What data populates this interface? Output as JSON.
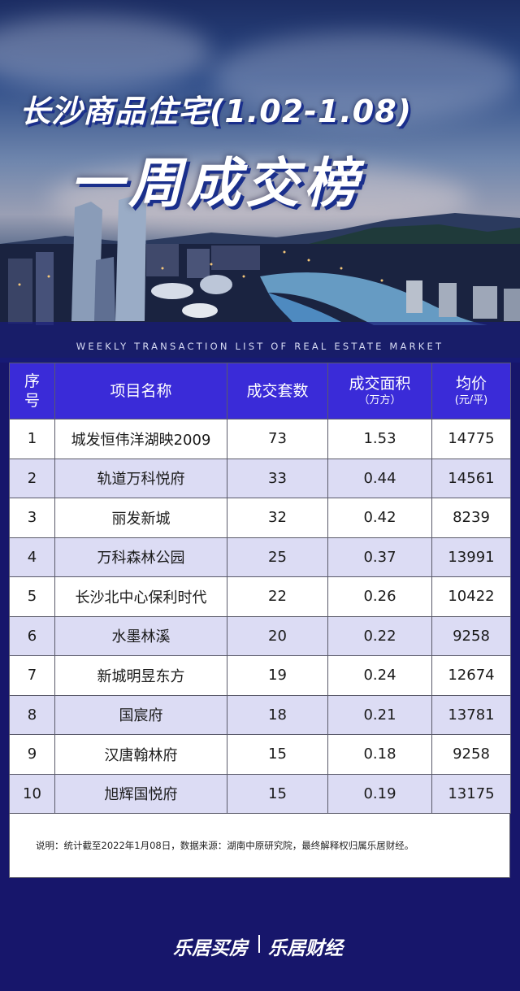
{
  "header": {
    "title_line1": "长沙商品住宅(1.02-1.08)",
    "title_line2": "一周成交榜",
    "subtitle": "WEEKLY TRANSACTION LIST OF REAL ESTATE MARKET"
  },
  "table": {
    "headers": {
      "index": [
        "序",
        "号"
      ],
      "name": "项目名称",
      "units": "成交套数",
      "area": "成交面积",
      "area_unit": "（万方）",
      "price": "均价",
      "price_unit": "(元/平)"
    },
    "rows": [
      {
        "index": "1",
        "name": "城发恒伟洋湖映2009",
        "units": "73",
        "area": "1.53",
        "price": "14775"
      },
      {
        "index": "2",
        "name": "轨道万科悦府",
        "units": "33",
        "area": "0.44",
        "price": "14561"
      },
      {
        "index": "3",
        "name": "丽发新城",
        "units": "32",
        "area": "0.42",
        "price": "8239"
      },
      {
        "index": "4",
        "name": "万科森林公园",
        "units": "25",
        "area": "0.37",
        "price": "13991"
      },
      {
        "index": "5",
        "name": "长沙北中心保利时代",
        "units": "22",
        "area": "0.26",
        "price": "10422"
      },
      {
        "index": "6",
        "name": "水墨林溪",
        "units": "20",
        "area": "0.22",
        "price": "9258"
      },
      {
        "index": "7",
        "name": "新城明昱东方",
        "units": "19",
        "area": "0.24",
        "price": "12674"
      },
      {
        "index": "8",
        "name": "国宸府",
        "units": "18",
        "area": "0.21",
        "price": "13781"
      },
      {
        "index": "9",
        "name": "汉唐翰林府",
        "units": "15",
        "area": "0.18",
        "price": "9258"
      },
      {
        "index": "10",
        "name": "旭辉国悦府",
        "units": "15",
        "area": "0.19",
        "price": "13175"
      }
    ]
  },
  "note": "说明：统计截至2022年1月08日，数据来源：湖南中原研究院，最终解释权归属乐居财经。",
  "footer": {
    "logo_left": "乐居买房",
    "logo_right": "乐居财经"
  },
  "colors": {
    "background": "#17166b",
    "header_fill": "#3a2bd8",
    "row_alt": "#dcdcf4"
  }
}
